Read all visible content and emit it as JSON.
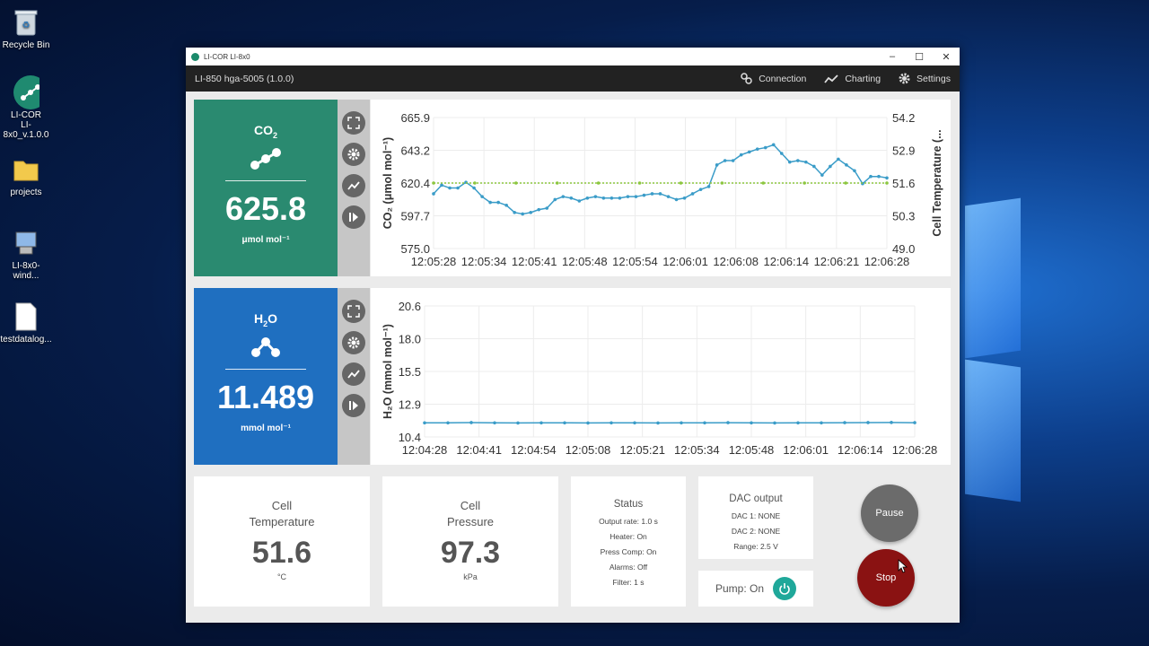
{
  "desktop": {
    "icons": [
      {
        "label": "Recycle Bin"
      },
      {
        "label": "LI-COR\nLI-8x0_v.1.0.0"
      },
      {
        "label": "projects"
      },
      {
        "label": "LI-8x0-wind..."
      },
      {
        "label": "testdatalog..."
      }
    ]
  },
  "window": {
    "title": "LI-COR LI-8x0",
    "subtitle": "LI-850 hga-5005 (1.0.0)",
    "nav": {
      "connection": "Connection",
      "charting": "Charting",
      "settings": "Settings"
    }
  },
  "co2": {
    "species_main": "CO",
    "species_sub": "2",
    "value": "625.8",
    "unit": "μmol mol⁻¹",
    "color": "#2a8a70"
  },
  "h2o": {
    "species_main": "H",
    "species_sub": "2",
    "species_tail": "O",
    "value": "11.489",
    "unit": "mmol mol⁻¹",
    "color": "#1f6fc0"
  },
  "chart_data": [
    {
      "type": "line",
      "ylabel": "CO₂ (μmol mol⁻¹)",
      "y2label": "Cell Temperature (...",
      "yticks": [
        "665.9",
        "643.2",
        "620.4",
        "597.7",
        "575.0"
      ],
      "y2ticks": [
        "54.2",
        "52.9",
        "51.6",
        "50.3",
        "49.0"
      ],
      "ylim": [
        575.0,
        665.9
      ],
      "y2lim": [
        49.0,
        54.2
      ],
      "xticks": [
        "12:05:28",
        "12:05:34",
        "12:05:41",
        "12:05:48",
        "12:05:54",
        "12:06:01",
        "12:06:08",
        "12:06:14",
        "12:06:21",
        "12:06:28"
      ],
      "series": [
        {
          "color": "#3a9cc8",
          "values": [
            613,
            619,
            617,
            617,
            621,
            617,
            611,
            607,
            607,
            605,
            600,
            599,
            600,
            602,
            603,
            609,
            611,
            610,
            608,
            610,
            611,
            610,
            610,
            610,
            611,
            611,
            612,
            613,
            613,
            611,
            609,
            610,
            613,
            616,
            618,
            633,
            636,
            636,
            640,
            642,
            644,
            645,
            647,
            641,
            635,
            636,
            635,
            632,
            626,
            632,
            637,
            633,
            629,
            620,
            625,
            625,
            624
          ]
        },
        {
          "color": "#8cc63f",
          "axis": "y2",
          "values": [
            51.6,
            51.6,
            51.6,
            51.6,
            51.6,
            51.6,
            51.6,
            51.6,
            51.6,
            51.6,
            51.6,
            51.6
          ]
        }
      ]
    },
    {
      "type": "line",
      "ylabel": "H₂O (mmol mol⁻¹)",
      "yticks": [
        "20.6",
        "18.0",
        "15.5",
        "12.9",
        "10.4"
      ],
      "ylim": [
        10.4,
        20.6
      ],
      "xticks": [
        "12:04:28",
        "12:04:41",
        "12:04:54",
        "12:05:08",
        "12:05:21",
        "12:05:34",
        "12:05:48",
        "12:06:01",
        "12:06:14",
        "12:06:28"
      ],
      "series": [
        {
          "color": "#3a9cc8",
          "values": [
            11.5,
            11.5,
            11.52,
            11.5,
            11.49,
            11.5,
            11.5,
            11.49,
            11.5,
            11.5,
            11.49,
            11.5,
            11.5,
            11.51,
            11.5,
            11.49,
            11.5,
            11.5,
            11.51,
            11.52,
            11.53,
            11.51
          ]
        }
      ]
    }
  ],
  "tiles": {
    "cell_temp": {
      "label1": "Cell",
      "label2": "Temperature",
      "value": "51.6",
      "unit": "°C"
    },
    "cell_pressure": {
      "label1": "Cell",
      "label2": "Pressure",
      "value": "97.3",
      "unit": "kPa"
    },
    "status": {
      "title": "Status",
      "lines": [
        "Output rate: 1.0 s",
        "Heater: On",
        "Press Comp: On",
        "Alarms: Off",
        "Filter: 1 s"
      ]
    },
    "dac": {
      "title": "DAC output",
      "lines": [
        "DAC 1: NONE",
        "DAC 2: NONE",
        "Range: 2.5 V"
      ]
    },
    "pump": {
      "label": "Pump: On"
    }
  },
  "buttons": {
    "pause": "Pause",
    "stop": "Stop"
  }
}
